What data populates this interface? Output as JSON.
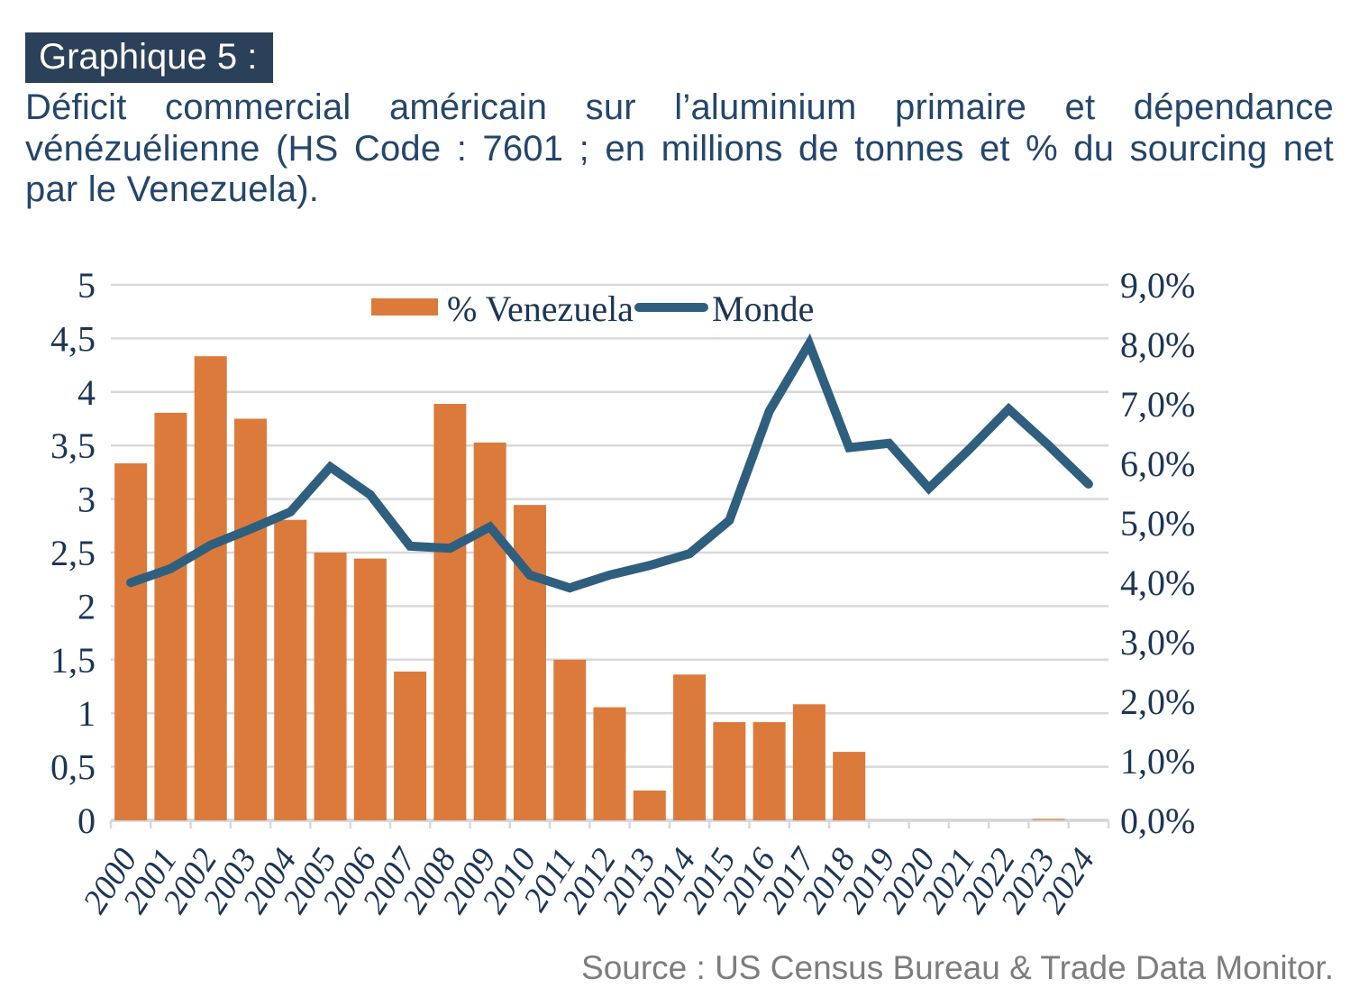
{
  "tag": {
    "label": "Graphique 5 :",
    "bg": "#2B4059",
    "fg": "#FFFFFF"
  },
  "title": {
    "color": "#24466B",
    "lines": [
      "Déficit commercial américain sur l’aluminium primaire et dépendance",
      "vénézuélienne (HS Code : 7601 ; en millions de tonnes et % du sourcing net",
      "par le Venezuela)."
    ]
  },
  "legend": {
    "items": [
      {
        "label": "% Venezuela",
        "type": "bar",
        "color": "#DC7A3B"
      },
      {
        "label": "Monde",
        "type": "line",
        "color": "#2E5F7E"
      }
    ]
  },
  "source": {
    "text": "Source : US Census Bureau & Trade Data Monitor.",
    "color": "#7D7D7D"
  },
  "colors": {
    "bar": "#DC7A3B",
    "line": "#2E5F7E",
    "grid": "#D9D9D9",
    "baseline": "#D4D4D4",
    "axis_text": "#1C3557"
  },
  "chart_data": {
    "type": "bar+line",
    "title": "Déficit commercial américain sur l’aluminium primaire et dépendance vénézuélienne",
    "categories": [
      "2000",
      "2001",
      "2002",
      "2003",
      "2004",
      "2005",
      "2006",
      "2007",
      "2008",
      "2009",
      "2010",
      "2011",
      "2012",
      "2013",
      "2014",
      "2015",
      "2016",
      "2017",
      "2018",
      "2019",
      "2020",
      "2021",
      "2022",
      "2023",
      "2024"
    ],
    "series": [
      {
        "name": "% Venezuela",
        "type": "bar",
        "axis": "right",
        "unit": "% du sourcing net par le Venezuela",
        "values": [
          6.0,
          6.85,
          7.8,
          6.75,
          5.05,
          4.5,
          4.4,
          2.5,
          7.0,
          6.35,
          5.3,
          2.7,
          1.9,
          0.5,
          2.45,
          1.65,
          1.65,
          1.95,
          1.15,
          0,
          0,
          0,
          0,
          0.03,
          0
        ]
      },
      {
        "name": "Monde",
        "type": "line",
        "axis": "left",
        "unit": "millions de tonnes",
        "values": [
          2.22,
          2.35,
          2.57,
          2.72,
          2.88,
          3.3,
          3.04,
          2.56,
          2.54,
          2.74,
          2.29,
          2.17,
          2.29,
          2.38,
          2.49,
          2.8,
          3.82,
          4.45,
          3.48,
          3.52,
          3.1,
          3.46,
          3.84,
          3.5,
          3.14
        ]
      }
    ],
    "y_axis_left": {
      "min": 0,
      "max": 5,
      "step": 0.5,
      "ticks": [
        "0",
        "0,5",
        "1",
        "1,5",
        "2",
        "2,5",
        "3",
        "3,5",
        "4",
        "4,5",
        "5"
      ]
    },
    "y_axis_right": {
      "min": 0,
      "max": 9,
      "step": 1,
      "ticks": [
        "0,0%",
        "1,0%",
        "2,0%",
        "3,0%",
        "4,0%",
        "5,0%",
        "6,0%",
        "7,0%",
        "8,0%",
        "9,0%"
      ]
    },
    "grid": true,
    "legend_position": "top-center"
  }
}
